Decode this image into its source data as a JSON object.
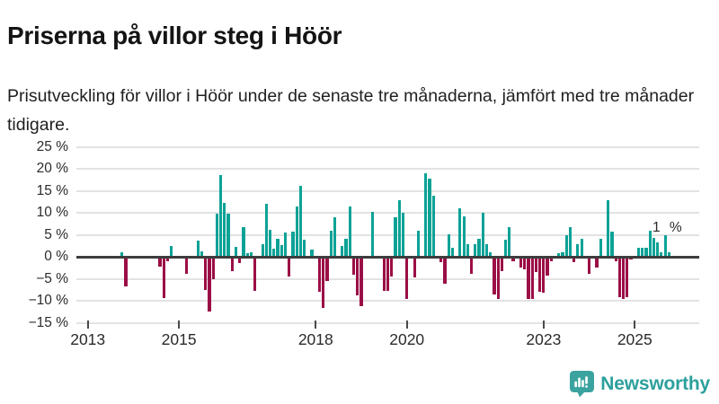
{
  "title": "Priserna på villor steg i Höör",
  "subtitle": "Prisutveckling för villor i Höör under de senaste tre månaderna, jämfört med tre månader tidigare.",
  "annotation": {
    "text": "1 %"
  },
  "brand": {
    "name": "Newsworthy",
    "icon": "newsworthy-speech-bubble-bar-chart-icon",
    "color": "#2CA09C"
  },
  "colors": {
    "positive": "#0CA296",
    "negative": "#9B0E46",
    "gridline": "#e3e3e3",
    "zero_line": "#3d3d3d"
  },
  "chart_data": {
    "type": "bar",
    "unit": "%",
    "grid": true,
    "legend": "none",
    "ylim": [
      -15,
      25
    ],
    "y_axis": {
      "ticks": [
        {
          "v": 25,
          "label": "25 %"
        },
        {
          "v": 20,
          "label": "20 %"
        },
        {
          "v": 15,
          "label": "15 %"
        },
        {
          "v": 10,
          "label": "10 %"
        },
        {
          "v": 5,
          "label": "5 %"
        },
        {
          "v": 0,
          "label": "0 %"
        },
        {
          "v": -5,
          "label": "−5 %"
        },
        {
          "v": -10,
          "label": "−10 %"
        },
        {
          "v": -15,
          "label": "−15 %"
        }
      ]
    },
    "x_axis": {
      "start": "2012-10",
      "end": "2026-06",
      "ticks": [
        2013,
        2015,
        2018,
        2020,
        2023,
        2025
      ]
    },
    "series": [
      {
        "m": "2013-10",
        "v": 1.0
      },
      {
        "m": "2013-11",
        "v": -6.8
      },
      {
        "m": "2014-08",
        "v": -2.2
      },
      {
        "m": "2014-09",
        "v": -9.3
      },
      {
        "m": "2014-10",
        "v": -1.0
      },
      {
        "m": "2014-11",
        "v": 2.5
      },
      {
        "m": "2015-03",
        "v": -3.9
      },
      {
        "m": "2015-06",
        "v": 3.7
      },
      {
        "m": "2015-07",
        "v": 1.2
      },
      {
        "m": "2015-08",
        "v": -7.5
      },
      {
        "m": "2015-09",
        "v": -12.5
      },
      {
        "m": "2015-10",
        "v": -5.2
      },
      {
        "m": "2015-11",
        "v": 9.7
      },
      {
        "m": "2015-12",
        "v": 18.6
      },
      {
        "m": "2016-01",
        "v": 12.2
      },
      {
        "m": "2016-02",
        "v": 9.7
      },
      {
        "m": "2016-03",
        "v": -3.3
      },
      {
        "m": "2016-04",
        "v": 2.2
      },
      {
        "m": "2016-05",
        "v": -1.5
      },
      {
        "m": "2016-06",
        "v": 6.7
      },
      {
        "m": "2016-07",
        "v": 0.9
      },
      {
        "m": "2016-08",
        "v": 1.1
      },
      {
        "m": "2016-09",
        "v": -7.7
      },
      {
        "m": "2016-11",
        "v": 2.8
      },
      {
        "m": "2016-12",
        "v": 12.0
      },
      {
        "m": "2017-01",
        "v": 6.2
      },
      {
        "m": "2017-02",
        "v": 1.8
      },
      {
        "m": "2017-03",
        "v": 4.1
      },
      {
        "m": "2017-04",
        "v": 2.6
      },
      {
        "m": "2017-05",
        "v": 5.6
      },
      {
        "m": "2017-06",
        "v": -4.4
      },
      {
        "m": "2017-07",
        "v": 5.8
      },
      {
        "m": "2017-08",
        "v": 11.5
      },
      {
        "m": "2017-09",
        "v": 16.1
      },
      {
        "m": "2017-10",
        "v": 3.8
      },
      {
        "m": "2017-12",
        "v": 1.6
      },
      {
        "m": "2018-02",
        "v": -8.0
      },
      {
        "m": "2018-03",
        "v": -11.6
      },
      {
        "m": "2018-04",
        "v": -5.5
      },
      {
        "m": "2018-05",
        "v": 5.9
      },
      {
        "m": "2018-06",
        "v": 8.9
      },
      {
        "m": "2018-08",
        "v": 2.4
      },
      {
        "m": "2018-09",
        "v": 4.1
      },
      {
        "m": "2018-10",
        "v": 11.4
      },
      {
        "m": "2018-11",
        "v": -4.0
      },
      {
        "m": "2018-12",
        "v": -8.8
      },
      {
        "m": "2019-01",
        "v": -11.3
      },
      {
        "m": "2019-04",
        "v": 10.3
      },
      {
        "m": "2019-07",
        "v": -7.8
      },
      {
        "m": "2019-08",
        "v": -7.8
      },
      {
        "m": "2019-09",
        "v": -4.4
      },
      {
        "m": "2019-10",
        "v": 9.0
      },
      {
        "m": "2019-11",
        "v": 12.8
      },
      {
        "m": "2019-12",
        "v": 9.9
      },
      {
        "m": "2020-01",
        "v": -9.5
      },
      {
        "m": "2020-03",
        "v": -4.7
      },
      {
        "m": "2020-04",
        "v": 5.9
      },
      {
        "m": "2020-06",
        "v": 18.9
      },
      {
        "m": "2020-07",
        "v": 17.8
      },
      {
        "m": "2020-08",
        "v": 13.9
      },
      {
        "m": "2020-10",
        "v": -1.3
      },
      {
        "m": "2020-11",
        "v": -6.1
      },
      {
        "m": "2020-12",
        "v": 5.1
      },
      {
        "m": "2021-01",
        "v": 2.1
      },
      {
        "m": "2021-03",
        "v": 11.1
      },
      {
        "m": "2021-04",
        "v": 9.1
      },
      {
        "m": "2021-05",
        "v": 2.8
      },
      {
        "m": "2021-06",
        "v": -3.9
      },
      {
        "m": "2021-07",
        "v": 2.9
      },
      {
        "m": "2021-08",
        "v": 4.1
      },
      {
        "m": "2021-09",
        "v": 9.9
      },
      {
        "m": "2021-10",
        "v": 2.8
      },
      {
        "m": "2021-11",
        "v": 1.0
      },
      {
        "m": "2021-12",
        "v": -8.5
      },
      {
        "m": "2022-01",
        "v": -9.6
      },
      {
        "m": "2022-02",
        "v": -3.2
      },
      {
        "m": "2022-03",
        "v": 3.9
      },
      {
        "m": "2022-04",
        "v": 6.8
      },
      {
        "m": "2022-05",
        "v": -1.1
      },
      {
        "m": "2022-07",
        "v": -2.4
      },
      {
        "m": "2022-08",
        "v": -2.8
      },
      {
        "m": "2022-09",
        "v": -9.6
      },
      {
        "m": "2022-10",
        "v": -9.5
      },
      {
        "m": "2022-11",
        "v": -3.5
      },
      {
        "m": "2022-12",
        "v": -8.0
      },
      {
        "m": "2023-01",
        "v": -8.2
      },
      {
        "m": "2023-02",
        "v": -4.2
      },
      {
        "m": "2023-03",
        "v": -1.0
      },
      {
        "m": "2023-05",
        "v": 0.9
      },
      {
        "m": "2023-06",
        "v": 1.0
      },
      {
        "m": "2023-07",
        "v": 4.9
      },
      {
        "m": "2023-08",
        "v": 6.8
      },
      {
        "m": "2023-09",
        "v": -1.3
      },
      {
        "m": "2023-10",
        "v": 2.9
      },
      {
        "m": "2023-11",
        "v": 4.1
      },
      {
        "m": "2024-01",
        "v": -3.9
      },
      {
        "m": "2024-03",
        "v": -2.5
      },
      {
        "m": "2024-04",
        "v": 4.1
      },
      {
        "m": "2024-06",
        "v": 12.9
      },
      {
        "m": "2024-07",
        "v": 5.8
      },
      {
        "m": "2024-08",
        "v": -1.0
      },
      {
        "m": "2024-09",
        "v": -9.1
      },
      {
        "m": "2024-10",
        "v": -9.6
      },
      {
        "m": "2024-11",
        "v": -9.1
      },
      {
        "m": "2024-12",
        "v": -0.6
      },
      {
        "m": "2025-02",
        "v": 2.0
      },
      {
        "m": "2025-03",
        "v": 2.0
      },
      {
        "m": "2025-04",
        "v": 2.0
      },
      {
        "m": "2025-05",
        "v": 5.9
      },
      {
        "m": "2025-06",
        "v": 4.2
      },
      {
        "m": "2025-07",
        "v": 3.3
      },
      {
        "m": "2025-08",
        "v": 1.1
      },
      {
        "m": "2025-09",
        "v": 5.0
      },
      {
        "m": "2025-10",
        "v": 1.0
      }
    ]
  }
}
